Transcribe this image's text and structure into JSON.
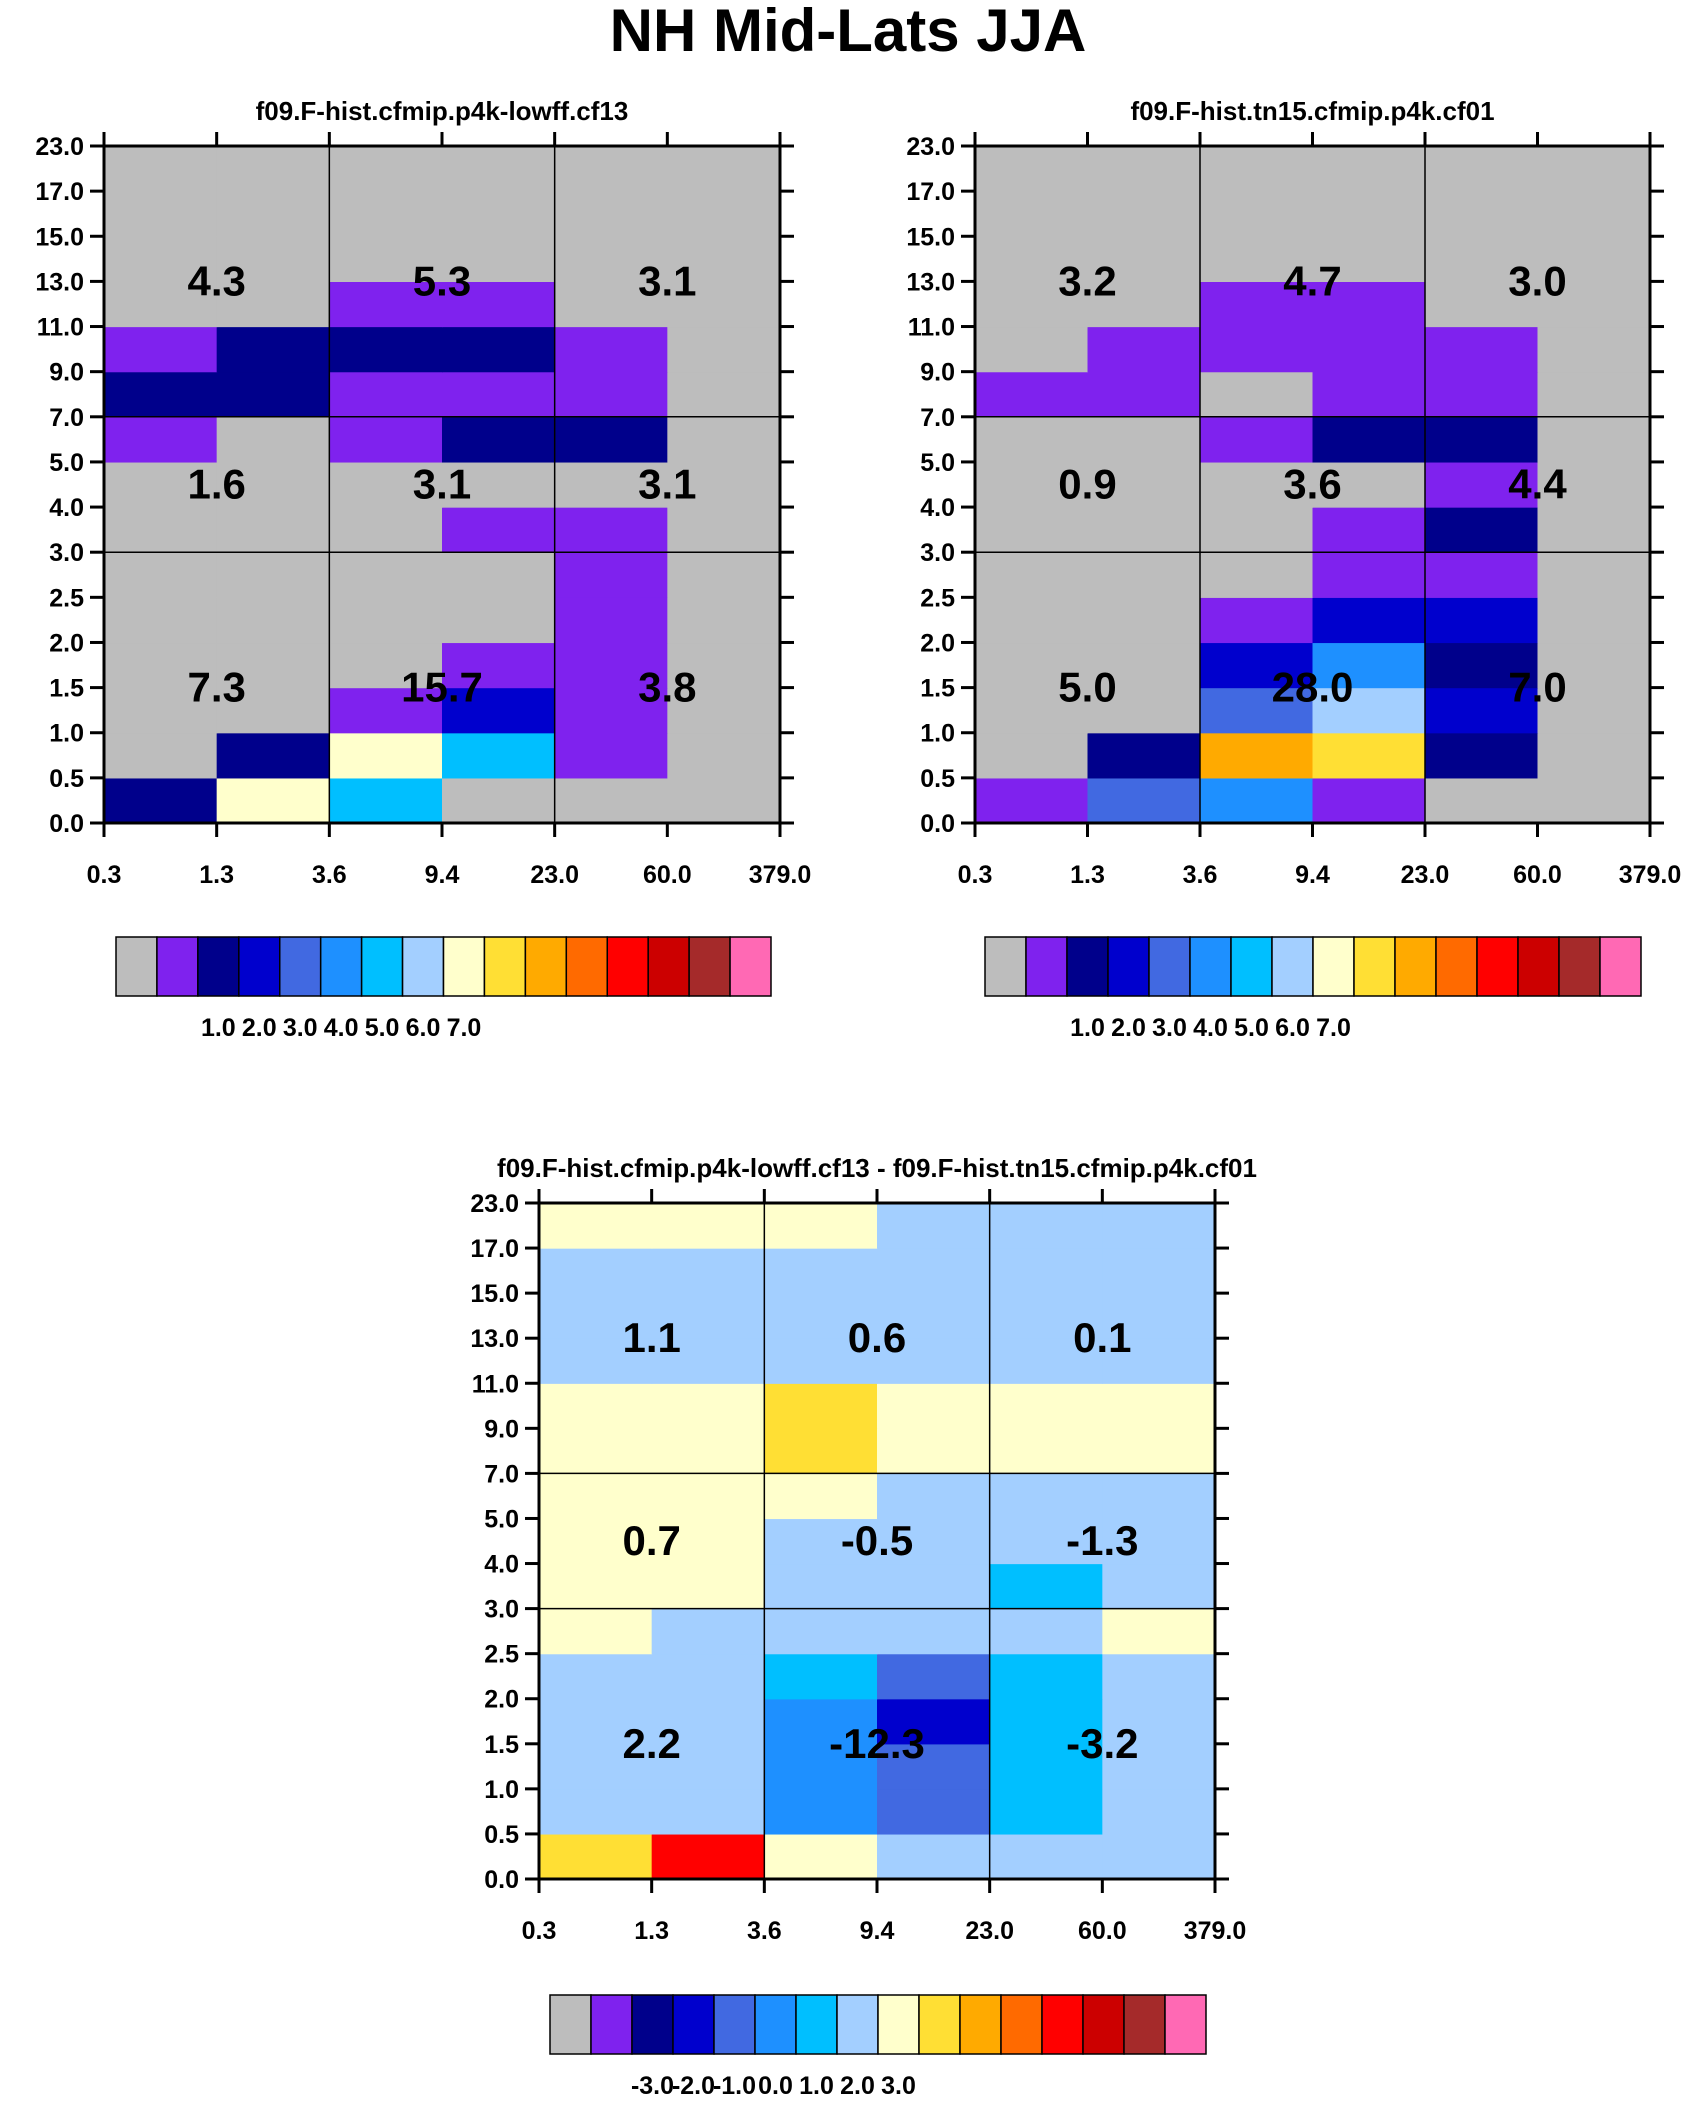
{
  "figure": {
    "title": "NH Mid-Lats JJA"
  },
  "colors": {
    "frame": "#000000",
    "missing": "#BDBDBD",
    "palette": [
      "#BDBDBD",
      "#7F22EE",
      "#00008B",
      "#0000CD",
      "#4169E1",
      "#1E90FF",
      "#00BFFF",
      "#A3CFFF",
      "#FFFFCC",
      "#FFDF34",
      "#FFAA00",
      "#FF6A00",
      "#FF0000",
      "#CC0000",
      "#A52A2A",
      "#FF69B4"
    ]
  },
  "chart_data": [
    {
      "type": "heatmap",
      "title": "f09.F-hist.cfmip.p4k-lowff.cf13",
      "x_ticks": [
        "0.3",
        "1.3",
        "3.6",
        "9.4",
        "23.0",
        "60.0",
        "379.0"
      ],
      "y_ticks": [
        "0.0",
        "0.5",
        "1.0",
        "1.5",
        "2.0",
        "2.5",
        "3.0",
        "4.0",
        "5.0",
        "7.0",
        "9.0",
        "11.0",
        "13.0",
        "15.0",
        "17.0",
        "23.0"
      ],
      "cells_bottom_to_top": [
        [
          2,
          8,
          6,
          0,
          0,
          0
        ],
        [
          0,
          2,
          8,
          6,
          1,
          0
        ],
        [
          0,
          0,
          1,
          3,
          1,
          0
        ],
        [
          0,
          0,
          0,
          1,
          1,
          0
        ],
        [
          0,
          0,
          0,
          0,
          1,
          0
        ],
        [
          0,
          0,
          0,
          0,
          1,
          0
        ],
        [
          0,
          0,
          0,
          1,
          1,
          0
        ],
        [
          0,
          0,
          0,
          0,
          0,
          0
        ],
        [
          1,
          0,
          1,
          2,
          2,
          0
        ],
        [
          2,
          2,
          1,
          1,
          1,
          0
        ],
        [
          1,
          2,
          2,
          2,
          1,
          0
        ],
        [
          0,
          0,
          1,
          1,
          0,
          0
        ],
        [
          0,
          0,
          0,
          0,
          0,
          0
        ],
        [
          0,
          0,
          0,
          0,
          0,
          0
        ],
        [
          0,
          0,
          0,
          0,
          0,
          0
        ]
      ],
      "region_totals": [
        {
          "label": "4.3",
          "region": "high-thin"
        },
        {
          "label": "5.3",
          "region": "high-medium"
        },
        {
          "label": "3.1",
          "region": "high-thick"
        },
        {
          "label": "1.6",
          "region": "middle-thin"
        },
        {
          "label": "3.1",
          "region": "middle-medium"
        },
        {
          "label": "3.1",
          "region": "middle-thick"
        },
        {
          "label": "7.3",
          "region": "low-thin"
        },
        {
          "label": "15.7",
          "region": "low-medium"
        },
        {
          "label": "3.8",
          "region": "low-thick"
        }
      ],
      "colorbar_labels": [
        "1.0",
        "2.0",
        "3.0",
        "4.0",
        "5.0",
        "6.0",
        "7.0"
      ]
    },
    {
      "type": "heatmap",
      "title": "f09.F-hist.tn15.cfmip.p4k.cf01",
      "x_ticks": [
        "0.3",
        "1.3",
        "3.6",
        "9.4",
        "23.0",
        "60.0",
        "379.0"
      ],
      "y_ticks": [
        "0.0",
        "0.5",
        "1.0",
        "1.5",
        "2.0",
        "2.5",
        "3.0",
        "4.0",
        "5.0",
        "7.0",
        "9.0",
        "11.0",
        "13.0",
        "15.0",
        "17.0",
        "23.0"
      ],
      "cells_bottom_to_top": [
        [
          1,
          4,
          5,
          1,
          0,
          0
        ],
        [
          0,
          2,
          10,
          9,
          2,
          0
        ],
        [
          0,
          0,
          4,
          7,
          3,
          0
        ],
        [
          0,
          0,
          3,
          5,
          2,
          0
        ],
        [
          0,
          0,
          1,
          3,
          3,
          0
        ],
        [
          0,
          0,
          0,
          1,
          1,
          0
        ],
        [
          0,
          0,
          0,
          1,
          2,
          0
        ],
        [
          0,
          0,
          0,
          0,
          1,
          0
        ],
        [
          0,
          0,
          1,
          2,
          2,
          0
        ],
        [
          1,
          1,
          0,
          1,
          1,
          0
        ],
        [
          0,
          1,
          1,
          1,
          1,
          0
        ],
        [
          0,
          0,
          1,
          1,
          0,
          0
        ],
        [
          0,
          0,
          0,
          0,
          0,
          0
        ],
        [
          0,
          0,
          0,
          0,
          0,
          0
        ],
        [
          0,
          0,
          0,
          0,
          0,
          0
        ]
      ],
      "region_totals": [
        {
          "label": "3.2",
          "region": "high-thin"
        },
        {
          "label": "4.7",
          "region": "high-medium"
        },
        {
          "label": "3.0",
          "region": "high-thick"
        },
        {
          "label": "0.9",
          "region": "middle-thin"
        },
        {
          "label": "3.6",
          "region": "middle-medium"
        },
        {
          "label": "4.4",
          "region": "middle-thick"
        },
        {
          "label": "5.0",
          "region": "low-thin"
        },
        {
          "label": "28.0",
          "region": "low-medium"
        },
        {
          "label": "7.0",
          "region": "low-thick"
        }
      ],
      "colorbar_labels": [
        "1.0",
        "2.0",
        "3.0",
        "4.0",
        "5.0",
        "6.0",
        "7.0"
      ]
    },
    {
      "type": "heatmap",
      "title": "f09.F-hist.cfmip.p4k-lowff.cf13 - f09.F-hist.tn15.cfmip.p4k.cf01",
      "x_ticks": [
        "0.3",
        "1.3",
        "3.6",
        "9.4",
        "23.0",
        "60.0",
        "379.0"
      ],
      "y_ticks": [
        "0.0",
        "0.5",
        "1.0",
        "1.5",
        "2.0",
        "2.5",
        "3.0",
        "4.0",
        "5.0",
        "7.0",
        "9.0",
        "11.0",
        "13.0",
        "15.0",
        "17.0",
        "23.0"
      ],
      "cells_bottom_to_top": [
        [
          9,
          12,
          8,
          7,
          7,
          7
        ],
        [
          7,
          7,
          5,
          4,
          6,
          7
        ],
        [
          7,
          7,
          5,
          4,
          6,
          7
        ],
        [
          7,
          7,
          5,
          3,
          6,
          7
        ],
        [
          7,
          7,
          6,
          4,
          6,
          7
        ],
        [
          8,
          7,
          7,
          7,
          7,
          8
        ],
        [
          8,
          8,
          7,
          7,
          6,
          7
        ],
        [
          8,
          8,
          7,
          7,
          7,
          7
        ],
        [
          8,
          8,
          8,
          7,
          7,
          7
        ],
        [
          8,
          8,
          9,
          8,
          8,
          8
        ],
        [
          8,
          8,
          9,
          8,
          8,
          8
        ],
        [
          7,
          7,
          7,
          7,
          7,
          7
        ],
        [
          7,
          7,
          7,
          7,
          7,
          7
        ],
        [
          7,
          7,
          7,
          7,
          7,
          7
        ],
        [
          8,
          8,
          8,
          7,
          7,
          7
        ]
      ],
      "region_totals": [
        {
          "label": "1.1",
          "region": "high-thin"
        },
        {
          "label": "0.6",
          "region": "high-medium"
        },
        {
          "label": "0.1",
          "region": "high-thick"
        },
        {
          "label": "0.7",
          "region": "middle-thin"
        },
        {
          "label": "-0.5",
          "region": "middle-medium"
        },
        {
          "label": "-1.3",
          "region": "middle-thick"
        },
        {
          "label": "2.2",
          "region": "low-thin"
        },
        {
          "label": "-12.3",
          "region": "low-medium"
        },
        {
          "label": "-3.2",
          "region": "low-thick"
        }
      ],
      "colorbar_labels": [
        "-3.0",
        "-2.0",
        "-1.0",
        "0.0",
        "1.0",
        "2.0",
        "3.0"
      ]
    }
  ]
}
